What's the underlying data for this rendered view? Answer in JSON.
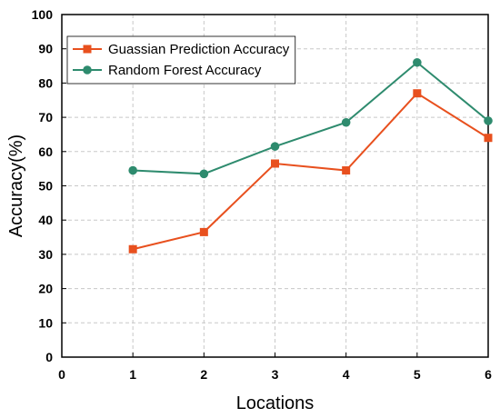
{
  "chart_data": {
    "type": "line",
    "title": "",
    "xlabel": "Locations",
    "ylabel": "Accuracy(%)",
    "xlim": [
      0,
      6
    ],
    "ylim": [
      0,
      100
    ],
    "x_ticks": [
      0,
      1,
      2,
      3,
      4,
      5,
      6
    ],
    "y_ticks": [
      0,
      10,
      20,
      30,
      40,
      50,
      60,
      70,
      80,
      90,
      100
    ],
    "grid": true,
    "legend_position": "top-left",
    "x": [
      1,
      2,
      3,
      4,
      5,
      6
    ],
    "series": [
      {
        "name": "Guassian Prediction Accuracy",
        "values": [
          31.5,
          36.5,
          56.5,
          54.5,
          77,
          64
        ],
        "color": "#e8501e",
        "marker": "square"
      },
      {
        "name": "Random Forest Accuracy",
        "values": [
          54.5,
          53.5,
          61.5,
          68.5,
          86,
          69
        ],
        "color": "#2e8b6e",
        "marker": "circle"
      }
    ]
  }
}
